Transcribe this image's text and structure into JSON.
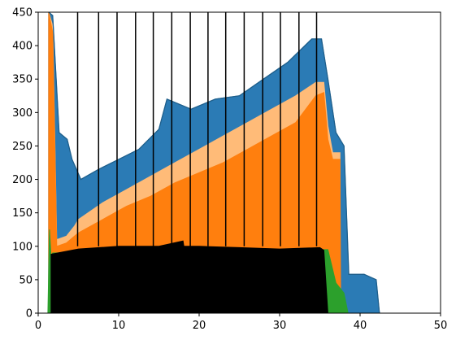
{
  "chart_data": {
    "type": "area",
    "title": "",
    "xlabel": "",
    "ylabel": "",
    "xlim": [
      0,
      50
    ],
    "ylim": [
      0,
      450
    ],
    "x_ticks": [
      0,
      10,
      20,
      30,
      40,
      50
    ],
    "y_ticks": [
      0,
      50,
      100,
      150,
      200,
      250,
      300,
      350,
      400,
      450
    ],
    "x_tick_labels": [
      "0",
      "10",
      "20",
      "30",
      "40",
      "50"
    ],
    "y_tick_labels": [
      "0",
      "50",
      "100",
      "150",
      "200",
      "250",
      "300",
      "350",
      "400",
      "450"
    ],
    "grid": false,
    "legend": "none",
    "vertical_lines_x": [
      4.9,
      7.5,
      9.8,
      12.1,
      14.3,
      16.6,
      18.9,
      21.1,
      23.3,
      25.6,
      27.9,
      30.1,
      32.4,
      34.6
    ],
    "series": [
      {
        "color": "#a6c4e0",
        "x": [
          1.3,
          1.7,
          2.2,
          3.0,
          4.2,
          5.0,
          7.0,
          9.5,
          12.0,
          15.0,
          18.0,
          21.0,
          24.0,
          27.0,
          30.0,
          33.0,
          35.3,
          36.0,
          37.0,
          38.4,
          40.0,
          42.0,
          42.4
        ],
        "y": [
          450,
          430,
          270,
          215,
          145,
          160,
          195,
          215,
          240,
          260,
          285,
          285,
          300,
          325,
          340,
          365,
          395,
          340,
          220,
          55,
          55,
          45,
          0
        ]
      },
      {
        "color": "#1f77b4",
        "x": [
          1.3,
          1.7,
          2.2,
          3.0,
          4.2,
          5.0,
          7.0,
          9.5,
          12.0,
          15.0,
          18.0,
          21.0,
          24.0,
          27.0,
          30.0,
          33.0,
          35.3,
          36.0,
          37.0,
          38.4,
          40.0,
          42.0,
          42.4
        ],
        "y": [
          440,
          400,
          200,
          180,
          140,
          155,
          180,
          200,
          225,
          245,
          270,
          270,
          285,
          310,
          325,
          345,
          370,
          320,
          210,
          50,
          50,
          35,
          0
        ]
      },
      {
        "color": "#2b7bb5",
        "x": [
          1.3,
          1.8,
          2.6,
          3.6,
          4.2,
          5.3,
          7.5,
          10.0,
          12.5,
          15.0,
          16.0,
          19.0,
          22.0,
          25.0,
          28.0,
          31.0,
          34.0,
          35.2,
          36.0,
          37.0,
          38.0,
          38.6,
          40.5,
          42.0,
          42.4
        ],
        "y": [
          450,
          445,
          270,
          260,
          230,
          200,
          215,
          230,
          245,
          275,
          320,
          305,
          320,
          325,
          350,
          375,
          410,
          410,
          350,
          270,
          250,
          58,
          58,
          50,
          0
        ]
      },
      {
        "color": "#ffbb78",
        "x": [
          1.3,
          1.8,
          2.3,
          3.5,
          4.5,
          5.0,
          8.0,
          11.0,
          14.0,
          17.0,
          20.0,
          23.0,
          26.0,
          29.0,
          32.0,
          34.5,
          35.5,
          36.0,
          36.6,
          37.5
        ],
        "y": [
          450,
          430,
          110,
          115,
          130,
          140,
          165,
          185,
          205,
          225,
          245,
          265,
          285,
          305,
          325,
          345,
          345,
          280,
          240,
          240
        ]
      },
      {
        "color": "#ff7f0e",
        "x": [
          1.3,
          1.8,
          2.3,
          3.5,
          4.5,
          5.0,
          8.0,
          11.0,
          14.0,
          17.0,
          20.0,
          23.0,
          26.0,
          29.0,
          32.0,
          34.5,
          35.5,
          36.0,
          36.6,
          37.5,
          37.6
        ],
        "y": [
          450,
          420,
          100,
          105,
          115,
          120,
          140,
          160,
          175,
          195,
          210,
          225,
          245,
          265,
          285,
          325,
          330,
          260,
          230,
          230,
          0
        ]
      },
      {
        "color": "#2ca02c",
        "x": [
          1.2,
          1.4,
          1.6,
          1.8,
          36.0,
          37.0,
          38.0,
          38.5
        ],
        "y": [
          0,
          125,
          85,
          90,
          95,
          45,
          30,
          0
        ]
      },
      {
        "color": "#000000",
        "x": [
          1.6,
          5.0,
          10.0,
          15.0,
          18.0,
          18.1,
          20.0,
          25.0,
          30.0,
          35.0,
          35.5,
          36.0
        ],
        "y": [
          88,
          96,
          100,
          100,
          108,
          100,
          100,
          98,
          96,
          98,
          94,
          0
        ]
      }
    ]
  }
}
